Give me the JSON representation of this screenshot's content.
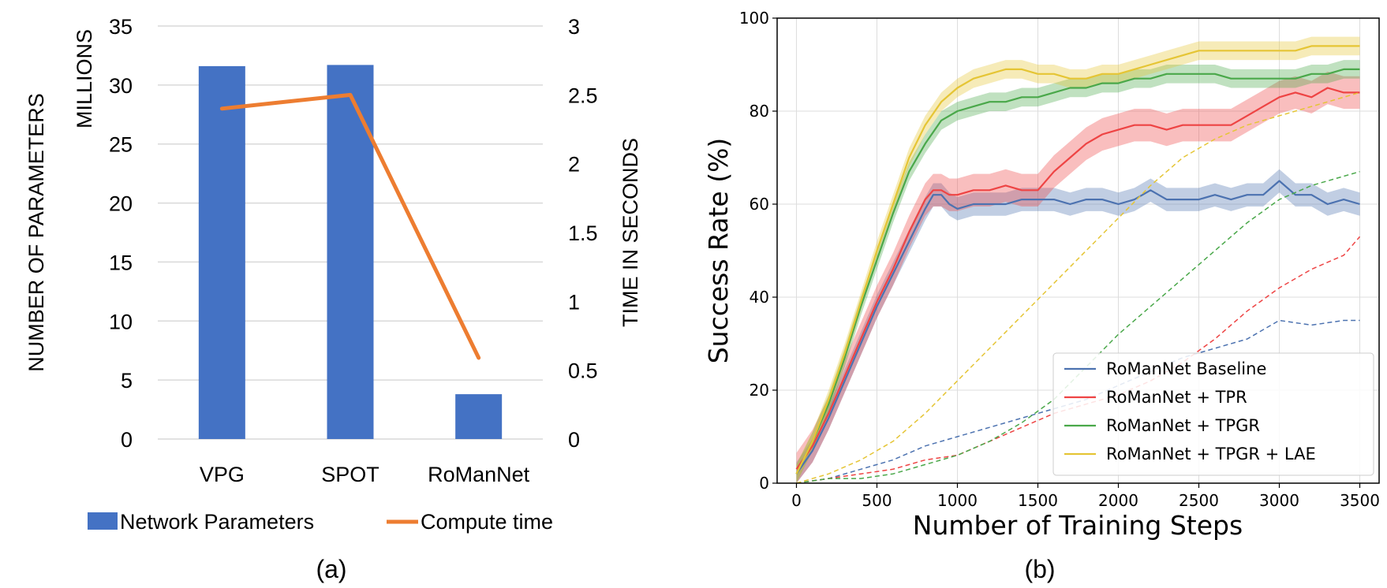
{
  "chart_data": [
    {
      "type": "bar",
      "panel_label": "(a)",
      "categories": [
        "VPG",
        "SPOT",
        "RoManNet"
      ],
      "ylabel": "NUMBER OF PARAMETERS",
      "y_units_label": "MILLIONS",
      "y2label": "TIME IN SECONDS",
      "ylim": [
        0,
        35
      ],
      "y2lim": [
        0,
        3
      ],
      "yticks": [
        "0",
        "5",
        "10",
        "15",
        "20",
        "25",
        "30",
        "35"
      ],
      "y2ticks": [
        "0",
        "0.5",
        "1",
        "1.5",
        "2",
        "2.5",
        "3"
      ],
      "grid": true,
      "legend_position": "bottom",
      "series": [
        {
          "name": "Network Parameters",
          "kind": "bar",
          "axis": "left",
          "color": "#4472C4",
          "values": [
            31.6,
            31.7,
            3.8
          ]
        },
        {
          "name": "Compute time",
          "kind": "line",
          "axis": "right",
          "color": "#ED7D31",
          "values": [
            2.4,
            2.5,
            0.59
          ]
        }
      ]
    },
    {
      "type": "line",
      "panel_label": "(b)",
      "xlabel": "Number of Training Steps",
      "ylabel": "Success Rate (%)",
      "xlim": [
        -120,
        3620
      ],
      "ylim": [
        0,
        100
      ],
      "xticks": [
        "0",
        "500",
        "1000",
        "1500",
        "2000",
        "2500",
        "3000",
        "3500"
      ],
      "yticks": [
        "0",
        "20",
        "40",
        "60",
        "80",
        "100"
      ],
      "grid": true,
      "legend_position": "lower-right",
      "note": "solid lines with shaded bands and dashed lines share colors per method",
      "series": [
        {
          "name": "RoManNet Baseline",
          "color": "#4C72B0",
          "style": "solid",
          "x": [
            0,
            100,
            200,
            300,
            400,
            500,
            600,
            700,
            800,
            850,
            900,
            950,
            1000,
            1100,
            1200,
            1300,
            1400,
            1500,
            1600,
            1700,
            1800,
            1900,
            2000,
            2100,
            2200,
            2300,
            2400,
            2500,
            2600,
            2700,
            2800,
            2900,
            3000,
            3100,
            3200,
            3300,
            3400,
            3500
          ],
          "y": [
            2,
            7,
            14,
            22,
            30,
            38,
            45,
            52,
            59,
            62,
            62,
            60,
            59,
            60,
            60,
            60,
            61,
            61,
            61,
            60,
            61,
            61,
            60,
            61,
            63,
            61,
            61,
            61,
            62,
            61,
            62,
            62,
            65,
            62,
            62,
            60,
            61,
            60
          ]
        },
        {
          "name": "RoManNet + TPR",
          "color": "#EE4444",
          "style": "solid",
          "x": [
            0,
            100,
            200,
            300,
            400,
            500,
            600,
            700,
            800,
            850,
            900,
            950,
            1000,
            1100,
            1200,
            1300,
            1400,
            1500,
            1600,
            1700,
            1800,
            1900,
            2000,
            2100,
            2200,
            2300,
            2400,
            2500,
            2600,
            2700,
            2800,
            2900,
            3000,
            3100,
            3200,
            3300,
            3400,
            3500
          ],
          "y": [
            3,
            8,
            15,
            23,
            31,
            39,
            46,
            54,
            61,
            63,
            63,
            62,
            62,
            63,
            63,
            64,
            63,
            63,
            67,
            70,
            73,
            75,
            76,
            77,
            77,
            76,
            77,
            77,
            77,
            77,
            79,
            81,
            83,
            84,
            83,
            85,
            84,
            84
          ]
        },
        {
          "name": "RoManNet + TPGR",
          "color": "#4AA84A",
          "style": "solid",
          "x": [
            0,
            100,
            200,
            300,
            400,
            500,
            600,
            700,
            800,
            900,
            1000,
            1100,
            1200,
            1300,
            1400,
            1500,
            1600,
            1700,
            1800,
            1900,
            2000,
            2100,
            2200,
            2300,
            2400,
            2500,
            2600,
            2700,
            2800,
            2900,
            3000,
            3100,
            3200,
            3300,
            3400,
            3500
          ],
          "y": [
            2,
            9,
            17,
            27,
            38,
            48,
            58,
            67,
            73,
            78,
            80,
            81,
            82,
            82,
            83,
            83,
            84,
            85,
            85,
            86,
            86,
            87,
            87,
            88,
            88,
            88,
            88,
            87,
            87,
            87,
            87,
            87,
            88,
            88,
            89,
            89
          ]
        },
        {
          "name": "RoManNet + TPGR + LAE",
          "color": "#E5C535",
          "style": "solid",
          "x": [
            0,
            100,
            200,
            300,
            400,
            500,
            600,
            700,
            800,
            900,
            1000,
            1100,
            1200,
            1300,
            1400,
            1500,
            1600,
            1700,
            1800,
            1900,
            2000,
            2100,
            2200,
            2300,
            2400,
            2500,
            2600,
            2700,
            2800,
            2900,
            3000,
            3100,
            3200,
            3300,
            3400,
            3500
          ],
          "y": [
            2,
            9,
            18,
            28,
            39,
            50,
            60,
            70,
            77,
            82,
            85,
            87,
            88,
            89,
            89,
            88,
            88,
            87,
            87,
            88,
            88,
            89,
            90,
            91,
            92,
            93,
            93,
            93,
            93,
            93,
            93,
            93,
            94,
            94,
            94,
            94
          ]
        },
        {
          "name": "RoManNet Baseline (dashed)",
          "color": "#4C72B0",
          "style": "dashed",
          "x": [
            0,
            200,
            400,
            600,
            800,
            1000,
            1200,
            1400,
            1600,
            1800,
            2000,
            2200,
            2400,
            2600,
            2800,
            3000,
            3200,
            3400,
            3500
          ],
          "y": [
            0,
            1,
            3,
            5,
            8,
            10,
            12,
            14,
            16,
            18,
            21,
            24,
            27,
            29,
            31,
            35,
            34,
            35,
            35
          ]
        },
        {
          "name": "RoManNet + TPR (dashed)",
          "color": "#EE4444",
          "style": "dashed",
          "x": [
            0,
            200,
            400,
            600,
            800,
            1000,
            1200,
            1400,
            1600,
            1800,
            2000,
            2200,
            2400,
            2600,
            2800,
            3000,
            3200,
            3400,
            3500
          ],
          "y": [
            0,
            1,
            2,
            3,
            5,
            6,
            9,
            12,
            15,
            17,
            19,
            22,
            26,
            31,
            37,
            42,
            46,
            49,
            53
          ]
        },
        {
          "name": "RoManNet + TPGR (dashed)",
          "color": "#4AA84A",
          "style": "dashed",
          "x": [
            0,
            200,
            400,
            600,
            800,
            1000,
            1200,
            1400,
            1600,
            1800,
            2000,
            2200,
            2400,
            2600,
            2800,
            3000,
            3200,
            3400,
            3500
          ],
          "y": [
            0,
            1,
            1,
            2,
            4,
            6,
            9,
            13,
            18,
            25,
            32,
            38,
            44,
            50,
            56,
            61,
            64,
            66,
            67
          ]
        },
        {
          "name": "RoManNet + TPGR + LAE (dashed)",
          "color": "#E5C535",
          "style": "dashed",
          "x": [
            0,
            200,
            400,
            600,
            800,
            1000,
            1200,
            1400,
            1600,
            1800,
            2000,
            2200,
            2400,
            2600,
            2800,
            3000,
            3200,
            3400,
            3500
          ],
          "y": [
            0,
            2,
            5,
            9,
            15,
            22,
            29,
            36,
            43,
            50,
            57,
            64,
            70,
            74,
            77,
            79,
            81,
            83,
            84
          ]
        }
      ],
      "legend": [
        "RoManNet Baseline",
        "RoManNet + TPR",
        "RoManNet + TPGR",
        "RoManNet + TPGR + LAE"
      ]
    }
  ]
}
